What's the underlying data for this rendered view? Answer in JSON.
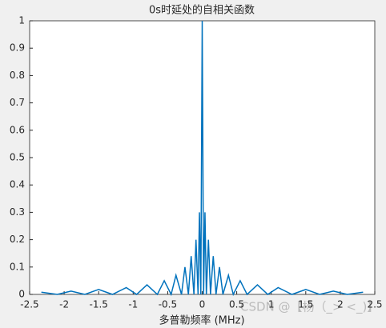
{
  "chart_data": {
    "type": "line",
    "title": "0s时延处的自相关函数",
    "x_label": "多普勒频率 (MHz)",
    "watermark": "CSDN @【杨（_> <_)】",
    "xlim": [
      -2.5,
      2.5
    ],
    "xticks": [
      -2.5,
      -2,
      -1.5,
      -1,
      -0.5,
      0,
      0.5,
      1,
      1.5,
      2,
      2.5
    ],
    "ylim": [
      0,
      1
    ],
    "yticks": [
      0,
      0.1,
      0.2,
      0.3,
      0.4,
      0.5,
      0.6,
      0.7,
      0.8,
      0.9,
      1
    ],
    "grid": false,
    "series": [
      {
        "color": "#0072bd",
        "x": [
          -2.33,
          -2.1,
          -1.9,
          -1.7,
          -1.5,
          -1.3,
          -1.1,
          -0.95,
          -0.8,
          -0.65,
          -0.55,
          -0.45,
          -0.38,
          -0.3,
          -0.25,
          -0.2,
          -0.16,
          -0.12,
          -0.09,
          -0.06,
          -0.04,
          -0.02,
          0,
          0.02,
          0.04,
          0.06,
          0.09,
          0.12,
          0.16,
          0.2,
          0.25,
          0.3,
          0.38,
          0.45,
          0.55,
          0.65,
          0.8,
          0.95,
          1.1,
          1.3,
          1.5,
          1.7,
          1.9,
          2.1,
          2.33
        ],
        "values": [
          0.008,
          0,
          0.012,
          0,
          0.018,
          0,
          0.025,
          0,
          0.035,
          0,
          0.05,
          0,
          0.07,
          0,
          0.1,
          0,
          0.14,
          0,
          0.2,
          0,
          0.3,
          0,
          1,
          0,
          0.3,
          0,
          0.2,
          0,
          0.14,
          0,
          0.1,
          0,
          0.07,
          0,
          0.05,
          0,
          0.035,
          0,
          0.025,
          0,
          0.018,
          0,
          0.012,
          0,
          0.008
        ]
      }
    ]
  }
}
